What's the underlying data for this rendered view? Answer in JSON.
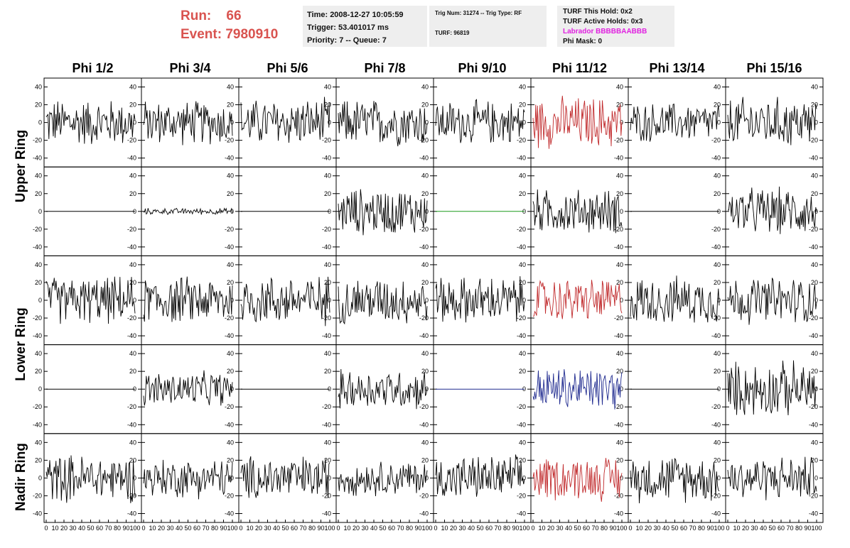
{
  "header": {
    "run_label": "Run:",
    "run_value": "66",
    "event_label": "Event:",
    "event_value": "7980910"
  },
  "info_time": {
    "time": "Time: 2008-12-27 10:05:59",
    "trigger": "Trigger: 53.401017 ms",
    "priority": "Priority: 7 -- Queue: 7"
  },
  "info_trig": {
    "trig": "Trig Num: 31274 -- Trig Type: RF",
    "turf": "TURF: 96819"
  },
  "info_turf": {
    "this_hold": "TURF This Hold: 0x2",
    "active_holds": "TURF Active Holds: 0x3",
    "labrador": "Labrador BBBBBAABBB",
    "phi_mask": "Phi Mask: 0"
  },
  "columns": [
    "Phi 1/2",
    "Phi 3/4",
    "Phi 5/6",
    "Phi 7/8",
    "Phi 9/10",
    "Phi 11/12",
    "Phi 13/14",
    "Phi 15/16"
  ],
  "rings": [
    {
      "label": "Upper Ring",
      "rows": [
        0,
        1
      ]
    },
    {
      "label": "Lower Ring",
      "rows": [
        2,
        3
      ]
    },
    {
      "label": "Nadir Ring",
      "rows": [
        4
      ]
    }
  ],
  "chart_data": {
    "type": "line",
    "description": "5x8 grid of waveform panels; each panel shows a noisy time trace (~100 samples) of voltage amplitude",
    "x_ticks": [
      0,
      10,
      20,
      30,
      40,
      50,
      60,
      70,
      80,
      90,
      100
    ],
    "y_ticks": [
      -40,
      -20,
      0,
      20,
      40
    ],
    "xlim": [
      0,
      100
    ],
    "ylim": [
      -50,
      50
    ],
    "colors": {
      "black": "#000000",
      "red": "#c0292b",
      "blue": "#1f2a8f",
      "green": "#1a9a1a"
    },
    "panels": [
      [
        {
          "amp": 30,
          "color": "black"
        },
        {
          "amp": 28,
          "color": "black"
        },
        {
          "amp": 30,
          "color": "black"
        },
        {
          "amp": 30,
          "color": "black"
        },
        {
          "amp": 28,
          "color": "black"
        },
        {
          "amp": 33,
          "color": "red"
        },
        {
          "amp": 25,
          "color": "black"
        },
        {
          "amp": 32,
          "color": "black"
        }
      ],
      [
        {
          "amp": 0,
          "color": "black"
        },
        {
          "amp": 4,
          "color": "black"
        },
        {
          "amp": 0,
          "color": "black"
        },
        {
          "amp": 30,
          "color": "black"
        },
        {
          "amp": 0,
          "color": "green"
        },
        {
          "amp": 28,
          "color": "black"
        },
        {
          "amp": 0,
          "color": "black"
        },
        {
          "amp": 30,
          "color": "black"
        }
      ],
      [
        {
          "amp": 30,
          "color": "black"
        },
        {
          "amp": 30,
          "color": "black"
        },
        {
          "amp": 32,
          "color": "black"
        },
        {
          "amp": 30,
          "color": "black"
        },
        {
          "amp": 30,
          "color": "black"
        },
        {
          "amp": 28,
          "color": "red"
        },
        {
          "amp": 30,
          "color": "black"
        },
        {
          "amp": 30,
          "color": "black"
        }
      ],
      [
        {
          "amp": 0,
          "color": "black"
        },
        {
          "amp": 22,
          "color": "black"
        },
        {
          "amp": 0,
          "color": "black"
        },
        {
          "amp": 25,
          "color": "black"
        },
        {
          "amp": 0,
          "color": "blue"
        },
        {
          "amp": 28,
          "color": "blue"
        },
        {
          "amp": 0,
          "color": "black"
        },
        {
          "amp": 35,
          "color": "black"
        }
      ],
      [
        {
          "amp": 30,
          "color": "black"
        },
        {
          "amp": 25,
          "color": "black"
        },
        {
          "amp": 28,
          "color": "black"
        },
        {
          "amp": 22,
          "color": "black"
        },
        {
          "amp": 28,
          "color": "black"
        },
        {
          "amp": 28,
          "color": "red"
        },
        {
          "amp": 30,
          "color": "black"
        },
        {
          "amp": 28,
          "color": "black"
        }
      ]
    ]
  }
}
